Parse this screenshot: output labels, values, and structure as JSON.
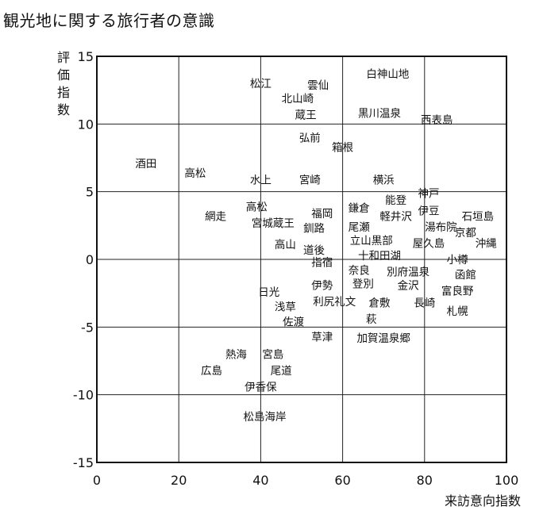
{
  "chart_data": {
    "type": "scatter",
    "title": "観光地に関する旅行者の意識",
    "xlabel": "来訪意向指数",
    "ylabel": "評価指数",
    "xlim": [
      0,
      100
    ],
    "ylim": [
      -15,
      15
    ],
    "x_ticks": [
      0,
      20,
      40,
      60,
      80,
      100
    ],
    "y_ticks": [
      15,
      10,
      5,
      0,
      -5,
      -10,
      -15
    ],
    "grid": true,
    "points": [
      {
        "label": "白神山地",
        "x": 71,
        "y": 13.7
      },
      {
        "label": "松江",
        "x": 40,
        "y": 13.0
      },
      {
        "label": "雲仙",
        "x": 54,
        "y": 12.9
      },
      {
        "label": "北山崎",
        "x": 49,
        "y": 11.9
      },
      {
        "label": "蔵王",
        "x": 51,
        "y": 10.7
      },
      {
        "label": "黒川温泉",
        "x": 69,
        "y": 10.8
      },
      {
        "label": "西表島",
        "x": 83,
        "y": 10.3
      },
      {
        "label": "弘前",
        "x": 52,
        "y": 9.0
      },
      {
        "label": "箱根",
        "x": 60,
        "y": 8.3
      },
      {
        "label": "酒田",
        "x": 12,
        "y": 7.1
      },
      {
        "label": "高松",
        "x": 24,
        "y": 6.4
      },
      {
        "label": "水上",
        "x": 40,
        "y": 5.9
      },
      {
        "label": "宮崎",
        "x": 52,
        "y": 5.9
      },
      {
        "label": "横浜",
        "x": 70,
        "y": 5.9
      },
      {
        "label": "神戸",
        "x": 81,
        "y": 4.9
      },
      {
        "label": "能登",
        "x": 73,
        "y": 4.4
      },
      {
        "label": "高松",
        "x": 39,
        "y": 3.9
      },
      {
        "label": "鎌倉",
        "x": 64,
        "y": 3.8
      },
      {
        "label": "伊豆",
        "x": 81,
        "y": 3.6
      },
      {
        "label": "網走",
        "x": 29,
        "y": 3.2
      },
      {
        "label": "福岡",
        "x": 55,
        "y": 3.4
      },
      {
        "label": "軽井沢",
        "x": 73,
        "y": 3.2
      },
      {
        "label": "石垣島",
        "x": 93,
        "y": 3.2
      },
      {
        "label": "宮城蔵王",
        "x": 43,
        "y": 2.7
      },
      {
        "label": "尾瀬",
        "x": 64,
        "y": 2.4
      },
      {
        "label": "釧路",
        "x": 53,
        "y": 2.3
      },
      {
        "label": "湯布院",
        "x": 84,
        "y": 2.4
      },
      {
        "label": "京都",
        "x": 90,
        "y": 2.0
      },
      {
        "label": "立山黒部",
        "x": 67,
        "y": 1.4
      },
      {
        "label": "高山",
        "x": 46,
        "y": 1.1
      },
      {
        "label": "屋久島",
        "x": 81,
        "y": 1.2
      },
      {
        "label": "沖縄",
        "x": 95,
        "y": 1.2
      },
      {
        "label": "道後",
        "x": 53,
        "y": 0.7
      },
      {
        "label": "十和田湖",
        "x": 69,
        "y": 0.3
      },
      {
        "label": "小樽",
        "x": 88,
        "y": 0.0
      },
      {
        "label": "指宿",
        "x": 55,
        "y": -0.2
      },
      {
        "label": "奈良",
        "x": 64,
        "y": -0.8
      },
      {
        "label": "別府温泉",
        "x": 76,
        "y": -0.9
      },
      {
        "label": "函館",
        "x": 90,
        "y": -1.1
      },
      {
        "label": "登別",
        "x": 65,
        "y": -1.8
      },
      {
        "label": "伊勢",
        "x": 55,
        "y": -1.9
      },
      {
        "label": "金沢",
        "x": 76,
        "y": -1.9
      },
      {
        "label": "日光",
        "x": 42,
        "y": -2.4
      },
      {
        "label": "富良野",
        "x": 88,
        "y": -2.3
      },
      {
        "label": "利尻礼文",
        "x": 58,
        "y": -3.1
      },
      {
        "label": "倉敷",
        "x": 69,
        "y": -3.2
      },
      {
        "label": "長崎",
        "x": 80,
        "y": -3.2
      },
      {
        "label": "浅草",
        "x": 46,
        "y": -3.5
      },
      {
        "label": "札幌",
        "x": 88,
        "y": -3.8
      },
      {
        "label": "萩",
        "x": 67,
        "y": -4.4
      },
      {
        "label": "佐渡",
        "x": 48,
        "y": -4.6
      },
      {
        "label": "草津",
        "x": 55,
        "y": -5.7
      },
      {
        "label": "加賀温泉郷",
        "x": 70,
        "y": -5.8
      },
      {
        "label": "熱海",
        "x": 34,
        "y": -7.0
      },
      {
        "label": "宮島",
        "x": 43,
        "y": -7.0
      },
      {
        "label": "広島",
        "x": 28,
        "y": -8.2
      },
      {
        "label": "尾道",
        "x": 45,
        "y": -8.2
      },
      {
        "label": "伊香保",
        "x": 40,
        "y": -9.4
      },
      {
        "label": "松島海岸",
        "x": 41,
        "y": -11.6
      }
    ]
  }
}
